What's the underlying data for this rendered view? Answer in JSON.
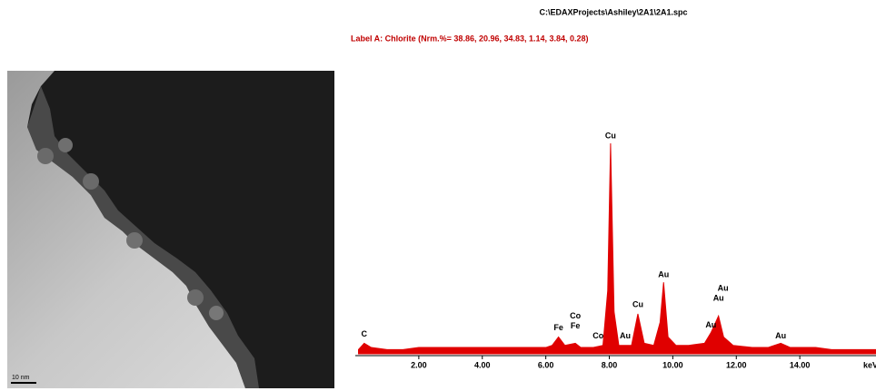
{
  "file_path": "C:\\EDAXProjects\\Ashiley\\2A1\\2A1.spc",
  "label_line": "Label A: Chlorite (Nrm.%= 38.86, 20.96, 34.83, 1.14, 3.84, 0.28)",
  "image": {
    "scale_bar": "10 nm"
  },
  "chart_data": {
    "type": "area",
    "color": "#e00000",
    "x_label": "keV",
    "xlim": [
      0,
      16.4
    ],
    "ylim": [
      0,
      100
    ],
    "xticks": [
      {
        "value": 2,
        "label": "2.00"
      },
      {
        "value": 4,
        "label": "4.00"
      },
      {
        "value": 6,
        "label": "6.00"
      },
      {
        "value": 8,
        "label": "8.00"
      },
      {
        "value": 10,
        "label": "10.00"
      },
      {
        "value": 12,
        "label": "12.00"
      },
      {
        "value": 14,
        "label": "14.00"
      }
    ],
    "x": [
      0.1,
      0.28,
      0.5,
      1.0,
      1.5,
      2.0,
      2.5,
      3.0,
      3.5,
      4.0,
      4.5,
      5.0,
      5.5,
      6.0,
      6.2,
      6.4,
      6.6,
      6.93,
      7.1,
      7.5,
      7.8,
      7.95,
      8.04,
      8.15,
      8.3,
      8.5,
      8.7,
      8.9,
      9.1,
      9.4,
      9.6,
      9.71,
      9.85,
      10.1,
      10.5,
      11.0,
      11.2,
      11.44,
      11.6,
      11.9,
      12.5,
      13.0,
      13.4,
      13.7,
      14.5,
      15.0,
      15.5,
      16.0,
      16.4
    ],
    "values": [
      2,
      5,
      3,
      2,
      2,
      3,
      3,
      3,
      3,
      3,
      3,
      3,
      3,
      3,
      4,
      8,
      4,
      5,
      3,
      3,
      4,
      30,
      100,
      20,
      4,
      4,
      4,
      19,
      5,
      4,
      15,
      34,
      8,
      4,
      4,
      5,
      10,
      18,
      8,
      4,
      3,
      3,
      5,
      3,
      3,
      2,
      2,
      2,
      2
    ],
    "annotations": [
      {
        "text": "C",
        "x": 0.28
      },
      {
        "text": "Fe",
        "x": 6.4
      },
      {
        "text": "Co",
        "x": 6.93
      },
      {
        "text": "Fe",
        "x": 6.93
      },
      {
        "text": "Co",
        "x": 7.65
      },
      {
        "text": "Cu",
        "x": 8.04
      },
      {
        "text": "Au",
        "x": 8.5
      },
      {
        "text": "Cu",
        "x": 8.9
      },
      {
        "text": "Au",
        "x": 9.71
      },
      {
        "text": "Au",
        "x": 11.58
      },
      {
        "text": "Au",
        "x": 11.44
      },
      {
        "text": "Au",
        "x": 11.2
      },
      {
        "text": "Au",
        "x": 13.4
      }
    ]
  }
}
